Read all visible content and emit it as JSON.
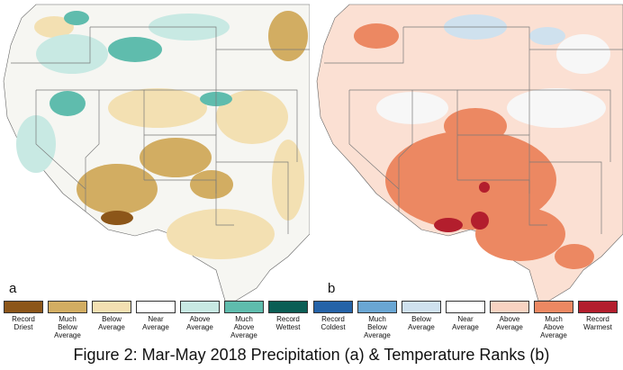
{
  "panels": [
    {
      "letter": "a",
      "variable": "Precipitation",
      "base_color": "#f6f6f2",
      "patches": [
        {
          "level": "Much Below Average",
          "color": "#d2ad62"
        },
        {
          "level": "Below Average",
          "color": "#f3e0b2"
        },
        {
          "level": "Above Average",
          "color": "#c8e9e3"
        },
        {
          "level": "Much Above Average",
          "color": "#5fbcad"
        },
        {
          "level": "Record Driest",
          "color": "#8c5619"
        }
      ]
    },
    {
      "letter": "b",
      "variable": "Temperature",
      "base_color": "#fbe0d3",
      "patches": [
        {
          "level": "Much Above Average",
          "color": "#ec8862"
        },
        {
          "level": "Above Average",
          "color": "#f8d3c2"
        },
        {
          "level": "Near Average",
          "color": "#f7f7f7"
        },
        {
          "level": "Below Average",
          "color": "#cfe1ee"
        },
        {
          "level": "Record Warmest",
          "color": "#b31e2d"
        }
      ]
    }
  ],
  "legend": [
    {
      "label": "Record\nDriest",
      "color": "#8c5619"
    },
    {
      "label": "Much\nBelow\nAverage",
      "color": "#d2ad62"
    },
    {
      "label": "Below\nAverage",
      "color": "#f3e0b2"
    },
    {
      "label": "Near\nAverage",
      "color": "#ffffff"
    },
    {
      "label": "Above\nAverage",
      "color": "#c8e9e3"
    },
    {
      "label": "Much\nAbove\nAverage",
      "color": "#5fbcad"
    },
    {
      "label": "Record\nWettest",
      "color": "#0b5e55"
    },
    {
      "label": "Record\nColdest",
      "color": "#2563a8"
    },
    {
      "label": "Much\nBelow\nAverage",
      "color": "#6aa6d3"
    },
    {
      "label": "Below\nAverage",
      "color": "#cfe1ee"
    },
    {
      "label": "Near\nAverage",
      "color": "#ffffff"
    },
    {
      "label": "Above\nAverage",
      "color": "#f8d3c2"
    },
    {
      "label": "Much\nAbove\nAverage",
      "color": "#ec8862"
    },
    {
      "label": "Record\nWarmest",
      "color": "#b31e2d"
    }
  ],
  "caption": "Figure 2: Mar-May 2018 Precipitation (a) & Temperature Ranks (b)"
}
